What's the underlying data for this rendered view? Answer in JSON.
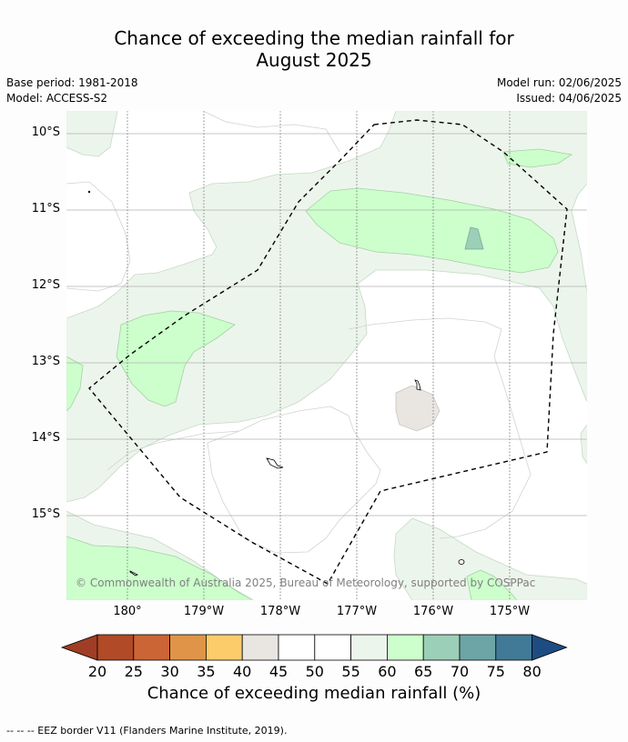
{
  "title_line1": "Chance of exceeding the median rainfall for",
  "title_line2": "August 2025",
  "meta": {
    "base_period": "Base period: 1981-2018",
    "model": "Model: ACCESS-S2",
    "model_run": "Model run: 02/06/2025",
    "issued": "Issued: 04/06/2025"
  },
  "map": {
    "lat_labels": [
      "10°S",
      "11°S",
      "12°S",
      "13°S",
      "14°S",
      "15°S"
    ],
    "lon_labels": [
      "180°",
      "179°W",
      "178°W",
      "177°W",
      "176°W",
      "175°W"
    ],
    "copyright": "© Commonwealth of Australia 2025, Bureau of Meteorology, supported by COSPPac"
  },
  "colorbar": {
    "ticks": [
      "20",
      "25",
      "30",
      "35",
      "40",
      "45",
      "50",
      "55",
      "60",
      "65",
      "70",
      "75",
      "80"
    ],
    "colors": {
      "under": "#a03d25",
      "bins": [
        "#b04a27",
        "#cc6535",
        "#e09448",
        "#fccc6a",
        "#e9e6e2",
        "#ffffff",
        "#ffffff",
        "#ecf5eb",
        "#ccffcc",
        "#9ccfb7",
        "#6da5a6",
        "#417a96"
      ],
      "over": "#1e4c82"
    },
    "title": "Chance of exceeding median rainfall (%)"
  },
  "footer": "--  --  -- EEZ border V11 (Flanders Marine Institute, 2019)."
}
